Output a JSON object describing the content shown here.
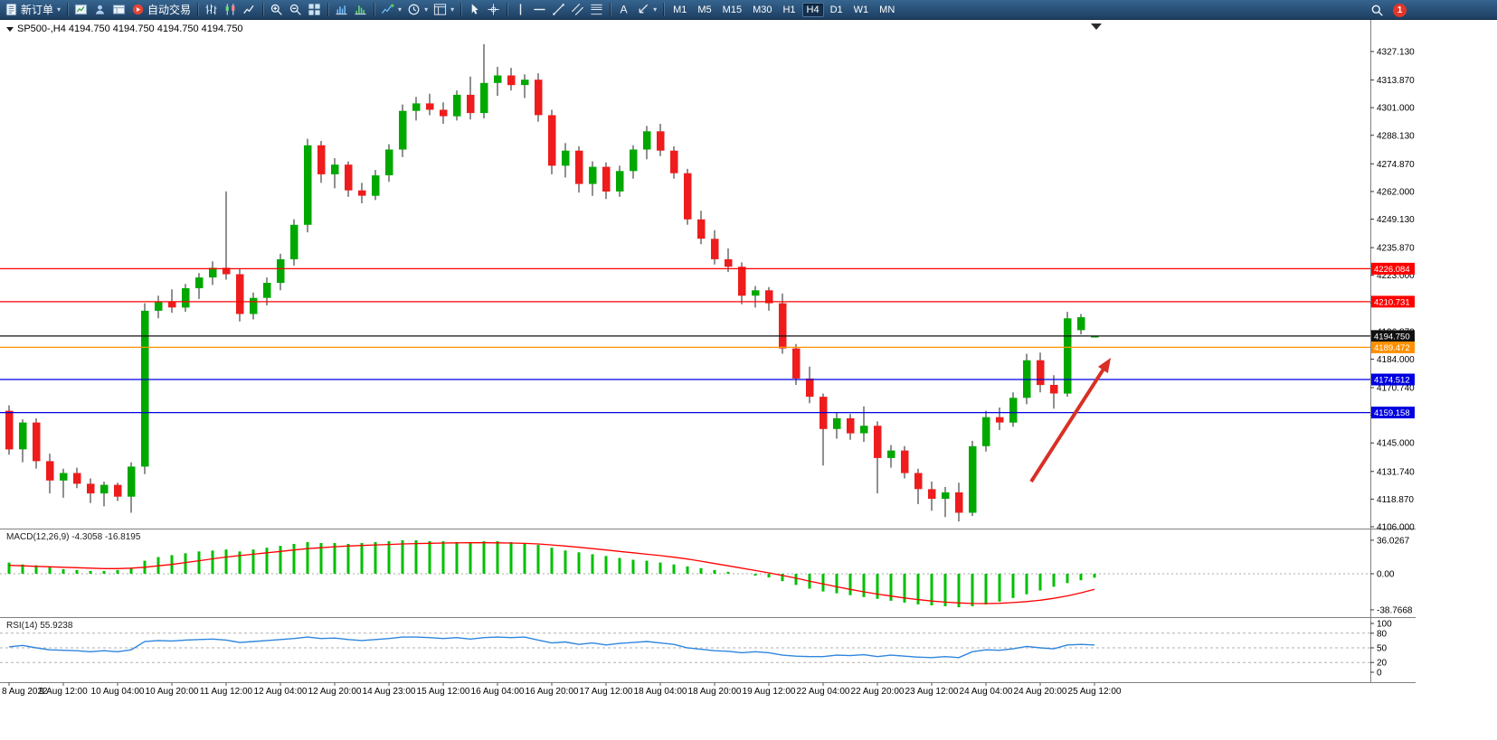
{
  "toolbar": {
    "badge": "1",
    "items": [
      {
        "kind": "button",
        "name": "new-order-button",
        "icon": "new-order-icon",
        "label": "新订单",
        "caret": true
      },
      {
        "kind": "sep"
      },
      {
        "kind": "button",
        "name": "market-watch-button",
        "icon": "market-watch-icon"
      },
      {
        "kind": "button",
        "name": "navigator-button",
        "icon": "navigator-icon"
      },
      {
        "kind": "button",
        "name": "terminal-button",
        "icon": "terminal-icon"
      },
      {
        "kind": "button",
        "name": "auto-trading-button",
        "icon": "auto-trading-icon",
        "label": "自动交易"
      },
      {
        "kind": "sep"
      },
      {
        "kind": "button",
        "name": "bar-chart-button",
        "icon": "ohlc-bars-icon"
      },
      {
        "kind": "button",
        "name": "candlestick-chart-button",
        "icon": "candlestick-icon"
      },
      {
        "kind": "button",
        "name": "line-chart-button",
        "icon": "line-chart-icon"
      },
      {
        "kind": "sep"
      },
      {
        "kind": "button",
        "name": "zoom-in-button",
        "icon": "zoom-in-icon"
      },
      {
        "kind": "button",
        "name": "zoom-out-button",
        "icon": "zoom-out-icon"
      },
      {
        "kind": "button",
        "name": "tile-windows-button",
        "icon": "tile-windows-icon"
      },
      {
        "kind": "sep"
      },
      {
        "kind": "button",
        "name": "indicator-window-button",
        "icon": "indicator-window-icon"
      },
      {
        "kind": "button",
        "name": "histogram-window-button",
        "icon": "histogram-icon"
      },
      {
        "kind": "sep"
      },
      {
        "kind": "button",
        "name": "insert-indicator-button",
        "icon": "indicators-icon",
        "caret": true
      },
      {
        "kind": "button",
        "name": "periods-button",
        "icon": "clock-icon",
        "caret": true
      },
      {
        "kind": "button",
        "name": "templates-button",
        "icon": "template-icon",
        "caret": true
      },
      {
        "kind": "sep"
      },
      {
        "kind": "button",
        "name": "cursor-button",
        "icon": "cursor-icon"
      },
      {
        "kind": "button",
        "name": "crosshair-button",
        "icon": "crosshair-icon"
      },
      {
        "kind": "sep"
      },
      {
        "kind": "button",
        "name": "vertical-line-button",
        "icon": "vertical-line-icon"
      },
      {
        "kind": "button",
        "name": "horizontal-line-button",
        "icon": "horizontal-line-icon"
      },
      {
        "kind": "button",
        "name": "trendline-button",
        "icon": "trendline-icon"
      },
      {
        "kind": "button",
        "name": "equidistant-channel-button",
        "icon": "channel-icon"
      },
      {
        "kind": "button",
        "name": "fibonacci-button",
        "icon": "fibonacci-icon"
      },
      {
        "kind": "sep"
      },
      {
        "kind": "button",
        "name": "text-button",
        "icon": "text-icon"
      },
      {
        "kind": "button",
        "name": "arrows-button",
        "icon": "arrow-tool-icon",
        "caret": true
      },
      {
        "kind": "sep"
      },
      {
        "kind": "tf",
        "label": "M1"
      },
      {
        "kind": "tf",
        "label": "M5"
      },
      {
        "kind": "tf",
        "label": "M15"
      },
      {
        "kind": "tf",
        "label": "M30"
      },
      {
        "kind": "tf",
        "label": "H1"
      },
      {
        "kind": "tf",
        "label": "H4",
        "active": true
      },
      {
        "kind": "tf",
        "label": "D1"
      },
      {
        "kind": "tf",
        "label": "W1"
      },
      {
        "kind": "tf",
        "label": "MN"
      }
    ]
  },
  "chart": {
    "symbol_line": "SP500-,H4 4194.750 4194.750 4194.750 4194.750"
  },
  "chart_data": {
    "type": "candlestick",
    "symbol": "SP500-",
    "timeframe": "H4",
    "ohlc_display": [
      "4194.750",
      "4194.750",
      "4194.750",
      "4194.750"
    ],
    "colors": {
      "up": "#00a800",
      "down": "#ee1c1c",
      "wick": "#222222",
      "macd_hist": "#00c000",
      "macd_signal": "#ff0000",
      "rsi": "#2e86de"
    },
    "price_axis_ticks": [
      "4327.130",
      "4313.870",
      "4301.000",
      "4288.130",
      "4274.870",
      "4262.000",
      "4249.130",
      "4235.870",
      "4223.000",
      "4210.130",
      "4196.870",
      "4184.000",
      "4170.740",
      "4157.870",
      "4145.000",
      "4131.740",
      "4118.870",
      "4106.000"
    ],
    "hlines": [
      {
        "label": "4226.084",
        "price": 4226.084,
        "color": "#ff0000"
      },
      {
        "label": "4210.731",
        "price": 4210.731,
        "color": "#ff0000"
      },
      {
        "label": "4194.750",
        "price": 4194.75,
        "color": "#111111",
        "is_current": true
      },
      {
        "label": "4189.472",
        "price": 4189.472,
        "color": "#ff9100"
      },
      {
        "label": "4174.512",
        "price": 4174.512,
        "color": "#0000e0"
      },
      {
        "label": "4159.158",
        "price": 4159.158,
        "color": "#0000e0"
      }
    ],
    "candles": [
      [
        4160,
        4162.5,
        4139.5,
        4142
      ],
      [
        4142,
        4156,
        4136,
        4154.5
      ],
      [
        4154.5,
        4156.5,
        4133,
        4136.5
      ],
      [
        4136.5,
        4140,
        4121.5,
        4127.5
      ],
      [
        4127.5,
        4133,
        4119.5,
        4131
      ],
      [
        4131,
        4133.5,
        4124,
        4126
      ],
      [
        4126,
        4128.5,
        4117,
        4121.5
      ],
      [
        4121.5,
        4127,
        4115.5,
        4125.5
      ],
      [
        4125.5,
        4126.5,
        4118,
        4120
      ],
      [
        4120,
        4136,
        4112.5,
        4134
      ],
      [
        4134,
        4210,
        4130.5,
        4206.5
      ],
      [
        4206.5,
        4213.5,
        4203,
        4210.5
      ],
      [
        4210.5,
        4216.5,
        4205.5,
        4208
      ],
      [
        4208,
        4219,
        4206,
        4217
      ],
      [
        4217,
        4224,
        4212,
        4222
      ],
      [
        4222,
        4229.5,
        4218.5,
        4226.5
      ],
      [
        4226.5,
        4262,
        4221,
        4223.5
      ],
      [
        4223.5,
        4226,
        4201.5,
        4205
      ],
      [
        4205,
        4215,
        4202.5,
        4212.5
      ],
      [
        4212.5,
        4222,
        4209,
        4219.5
      ],
      [
        4219.5,
        4233,
        4216,
        4230.5
      ],
      [
        4230.5,
        4249,
        4227.5,
        4246.5
      ],
      [
        4246.5,
        4286.5,
        4243,
        4283.5
      ],
      [
        4283.5,
        4285.5,
        4266,
        4270
      ],
      [
        4270,
        4277.5,
        4263.5,
        4274.5
      ],
      [
        4274.5,
        4276,
        4259.5,
        4262.5
      ],
      [
        4262.5,
        4266,
        4256.5,
        4260
      ],
      [
        4260,
        4272,
        4258,
        4269.5
      ],
      [
        4269.5,
        4284,
        4266.5,
        4281.5
      ],
      [
        4281.5,
        4302.5,
        4278,
        4299.5
      ],
      [
        4299.5,
        4306,
        4295,
        4303
      ],
      [
        4303,
        4307.5,
        4297.5,
        4300
      ],
      [
        4300,
        4303.5,
        4293.5,
        4297
      ],
      [
        4297,
        4309,
        4295,
        4307
      ],
      [
        4307,
        4315.5,
        4295.5,
        4298.5
      ],
      [
        4298.5,
        4330.5,
        4296,
        4312.5
      ],
      [
        4312.5,
        4320,
        4306.5,
        4316
      ],
      [
        4316,
        4319.5,
        4309,
        4311.5
      ],
      [
        4311.5,
        4316.5,
        4305.5,
        4314
      ],
      [
        4314,
        4317,
        4294.5,
        4297.5
      ],
      [
        4297.5,
        4300,
        4270,
        4274
      ],
      [
        4274,
        4284.5,
        4268.5,
        4281
      ],
      [
        4281,
        4283,
        4261.5,
        4265.5
      ],
      [
        4265.5,
        4276,
        4260,
        4273.5
      ],
      [
        4273.5,
        4275.5,
        4258.5,
        4262
      ],
      [
        4262,
        4274,
        4259.5,
        4271.5
      ],
      [
        4271.5,
        4283.5,
        4268,
        4281.5
      ],
      [
        4281.5,
        4292.5,
        4277,
        4290
      ],
      [
        4290,
        4293.5,
        4278.5,
        4281
      ],
      [
        4281,
        4283,
        4268,
        4270.5
      ],
      [
        4270.5,
        4272.5,
        4246.5,
        4249
      ],
      [
        4249,
        4253,
        4237.5,
        4240
      ],
      [
        4240,
        4244,
        4228,
        4230.5
      ],
      [
        4230.5,
        4235.5,
        4224.5,
        4227
      ],
      [
        4227,
        4229,
        4209.5,
        4213.5
      ],
      [
        4213.5,
        4218,
        4208,
        4216
      ],
      [
        4216,
        4217.5,
        4206.5,
        4210
      ],
      [
        4210,
        4214.5,
        4186.5,
        4189
      ],
      [
        4189,
        4191,
        4172,
        4175
      ],
      [
        4175,
        4180.5,
        4163.5,
        4166.5
      ],
      [
        4166.5,
        4168,
        4134.5,
        4151.5
      ],
      [
        4151.5,
        4159,
        4147,
        4156.5
      ],
      [
        4156.5,
        4158.5,
        4146.5,
        4149.5
      ],
      [
        4149.5,
        4162,
        4145.5,
        4153
      ],
      [
        4153,
        4155,
        4121.5,
        4138
      ],
      [
        4138,
        4144,
        4133.5,
        4141.5
      ],
      [
        4141.5,
        4143.5,
        4128.5,
        4131
      ],
      [
        4131,
        4133,
        4116.5,
        4123.5
      ],
      [
        4123.5,
        4127,
        4113.5,
        4119
      ],
      [
        4119,
        4124.5,
        4110.5,
        4122
      ],
      [
        4122,
        4126.5,
        4108.5,
        4112.5
      ],
      [
        4112.5,
        4146,
        4111,
        4143.5
      ],
      [
        4143.5,
        4160,
        4141,
        4157
      ],
      [
        4157,
        4161.5,
        4151,
        4154.5
      ],
      [
        4154.5,
        4168.5,
        4152.5,
        4166
      ],
      [
        4166,
        4186.5,
        4163,
        4183.5
      ],
      [
        4183.5,
        4187,
        4168.5,
        4172
      ],
      [
        4172,
        4176.5,
        4161,
        4168
      ],
      [
        4168,
        4206,
        4166.5,
        4203
      ],
      [
        4197.5,
        4205,
        4195.5,
        4203.5
      ],
      [
        4194.75,
        4194.75,
        4194.75,
        4194.75
      ]
    ],
    "macd": {
      "label": "MACD(12,26,9) -4.3058 -16.8195",
      "ticks": [
        {
          "label": "36.0267",
          "v": 36.0267
        },
        {
          "label": "0.00",
          "v": 0
        },
        {
          "label": "-38.7668",
          "v": -38.7668
        }
      ],
      "histogram": [
        12,
        10,
        9,
        7,
        5,
        4,
        3,
        3,
        4,
        6,
        14,
        18,
        20,
        22,
        24,
        25,
        26,
        24,
        26,
        28,
        30,
        32,
        34,
        33,
        33,
        32,
        33,
        34,
        35,
        36,
        36,
        35,
        35,
        34,
        34,
        35,
        35,
        34,
        33,
        31,
        28,
        25,
        23,
        21,
        19,
        17,
        15,
        14,
        12,
        10,
        8,
        6,
        4,
        2,
        0,
        -2,
        -4,
        -8,
        -12,
        -16,
        -19,
        -21,
        -23,
        -25,
        -27,
        -29,
        -31,
        -33,
        -34,
        -35,
        -36,
        -35,
        -33,
        -30,
        -26,
        -22,
        -18,
        -14,
        -10,
        -7,
        -4.3058
      ],
      "signal": [
        9,
        8.5,
        8,
        7.5,
        7,
        6.5,
        6,
        5.5,
        5.5,
        6,
        7,
        8.5,
        10,
        12,
        14,
        16,
        18,
        19.5,
        21,
        22.5,
        24,
        25.5,
        27,
        28,
        29,
        29.8,
        30.4,
        31,
        31.5,
        32,
        32.4,
        32.7,
        33,
        33.2,
        33.3,
        33.3,
        33.2,
        33,
        32.6,
        32,
        31,
        29.8,
        28.4,
        27,
        25.5,
        24,
        22.5,
        21,
        19.5,
        17.8,
        15.8,
        13.5,
        11,
        8.5,
        6,
        3.5,
        1,
        -1.8,
        -4.8,
        -8,
        -11,
        -14,
        -16.8,
        -19.4,
        -21.8,
        -24,
        -26,
        -27.8,
        -29.3,
        -30.5,
        -31.4,
        -31.9,
        -32,
        -31.7,
        -31,
        -29.9,
        -28.4,
        -26.4,
        -23.8,
        -20.5,
        -16.8195
      ]
    },
    "rsi": {
      "label": "RSI(14) 55.9238",
      "ticks": [
        {
          "label": "100",
          "v": 100
        },
        {
          "label": "80",
          "v": 80
        },
        {
          "label": "50",
          "v": 50
        },
        {
          "label": "20",
          "v": 20
        },
        {
          "label": "0",
          "v": 0
        }
      ],
      "levels": [
        80,
        50,
        20
      ],
      "values": [
        52,
        55,
        50,
        46,
        45,
        44,
        42,
        44,
        42,
        46,
        63,
        65,
        64,
        66,
        67,
        68,
        66,
        61,
        63,
        65,
        67,
        69,
        72,
        69,
        70,
        67,
        65,
        67,
        69,
        72,
        72,
        71,
        69,
        71,
        68,
        71,
        72,
        71,
        72,
        66,
        60,
        62,
        57,
        60,
        56,
        59,
        61,
        63,
        60,
        57,
        50,
        47,
        44,
        43,
        40,
        42,
        40,
        35,
        33,
        32,
        32,
        35,
        34,
        36,
        32,
        35,
        33,
        31,
        30,
        32,
        30,
        42,
        46,
        45,
        48,
        53,
        50,
        48,
        56,
        57,
        55.9238
      ]
    },
    "time_labels": [
      "8 Aug 2022",
      "9 Aug 12:00",
      "10 Aug 04:00",
      "10 Aug 20:00",
      "11 Aug 12:00",
      "12 Aug 04:00",
      "12 Aug 20:00",
      "14 Aug 23:00",
      "15 Aug 12:00",
      "16 Aug 04:00",
      "16 Aug 20:00",
      "17 Aug 12:00",
      "18 Aug 04:00",
      "18 Aug 20:00",
      "19 Aug 12:00",
      "22 Aug 04:00",
      "22 Aug 20:00",
      "23 Aug 12:00",
      "24 Aug 04:00",
      "24 Aug 20:00",
      "25 Aug 12:00"
    ],
    "arrow": {
      "from": [
        1140,
        533
      ],
      "to": [
        1228,
        396
      ],
      "color": "#d93025"
    }
  }
}
